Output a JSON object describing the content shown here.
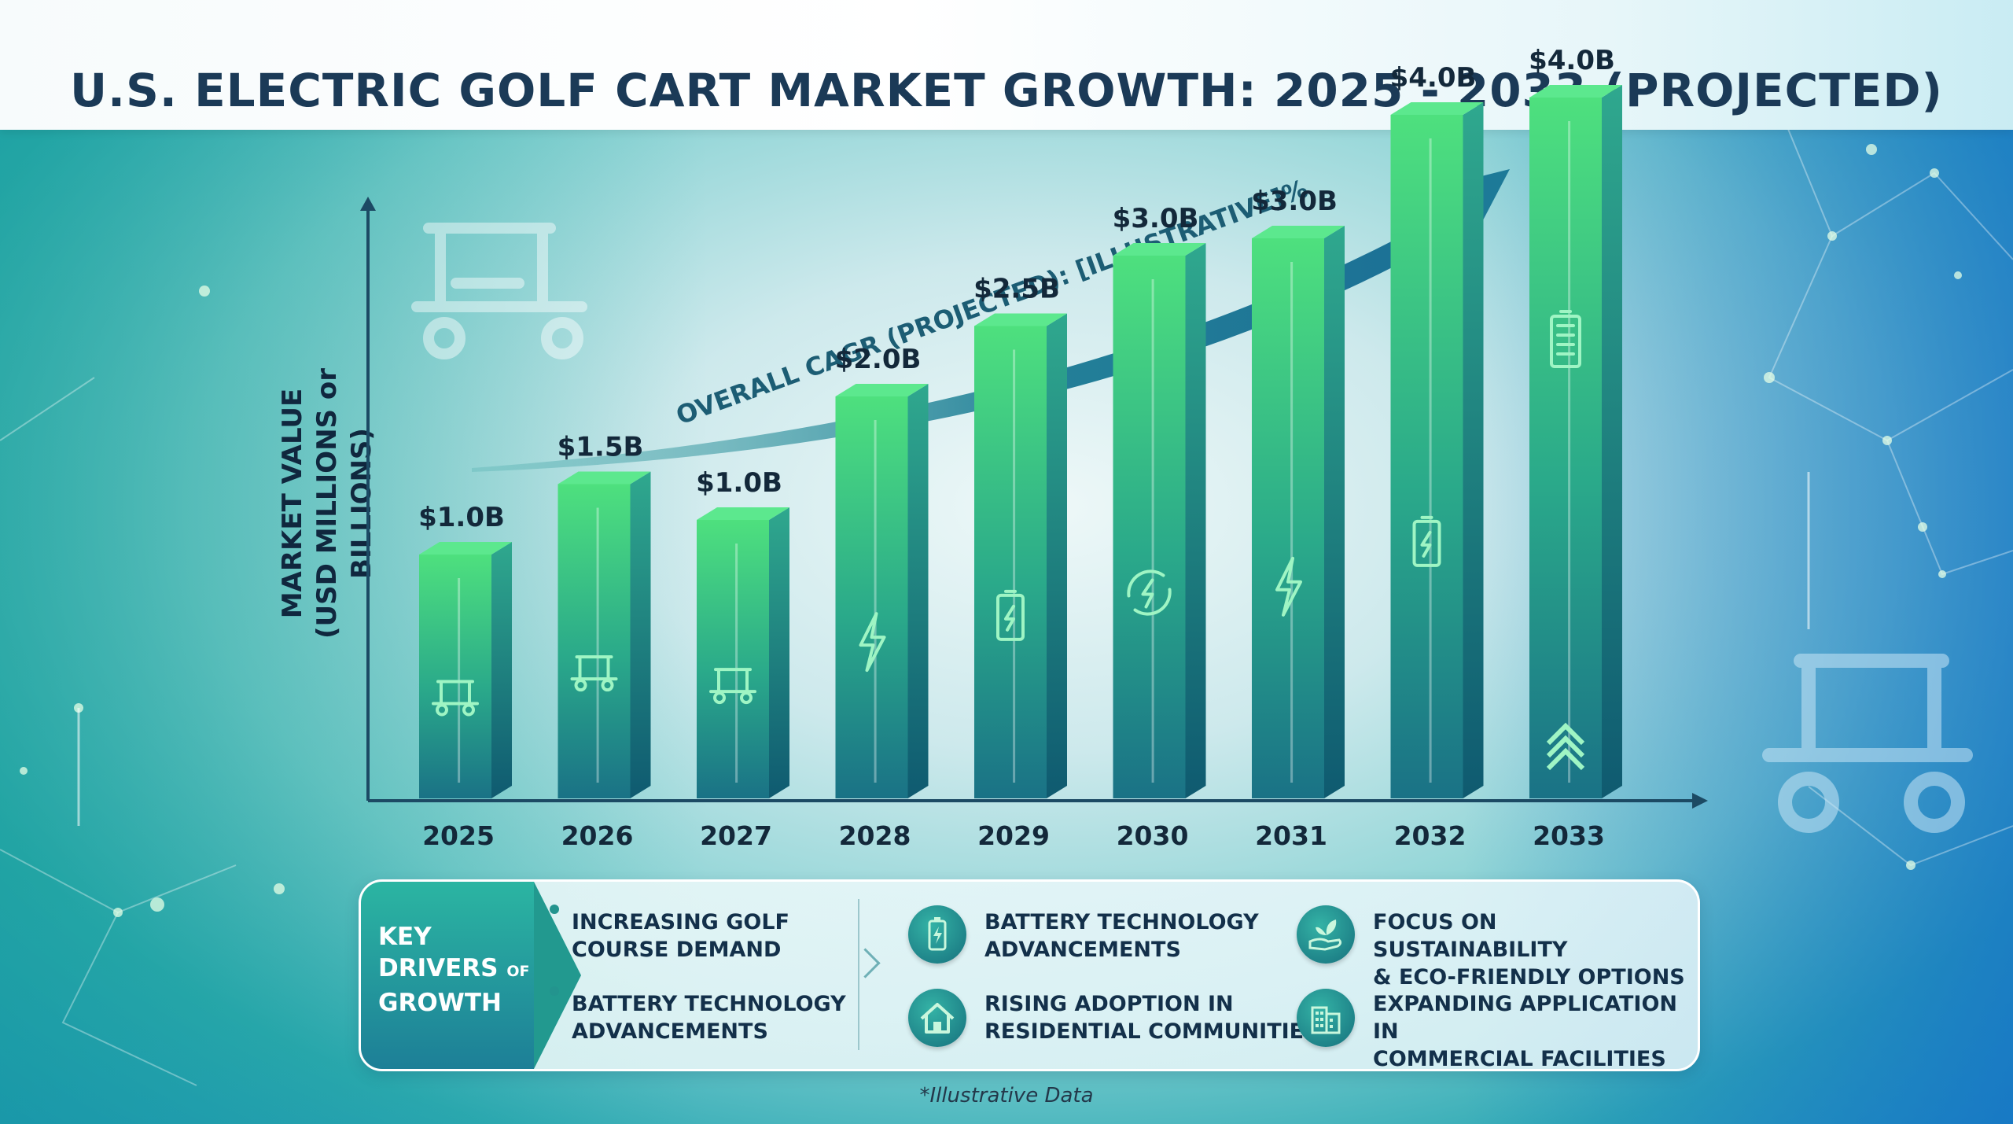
{
  "title": "U.S. ELECTRIC GOLF CART MARKET GROWTH: 2025 - 2033 (PROJECTED)",
  "y_axis_label": [
    "MARKET VALUE",
    "(USD MILLIONS or BILLIONS)"
  ],
  "cagr_label": "OVERALL CAGR (PROJECTED): [ILLUSTRATIVE]%",
  "chart_data": {
    "type": "bar",
    "title": "U.S. ELECTRIC GOLF CART MARKET GROWTH: 2025 - 2033 (PROJECTED)",
    "xlabel": "",
    "ylabel": "MARKET VALUE (USD MILLIONS or BILLIONS)",
    "categories": [
      "2025",
      "2026",
      "2027",
      "2028",
      "2029",
      "2030",
      "2031",
      "2032",
      "2033"
    ],
    "values": [
      1.0,
      1.5,
      1.0,
      2.0,
      2.5,
      3.0,
      3.0,
      4.0,
      4.0
    ],
    "data_labels": [
      "$1.0B",
      "$1.5B",
      "$1.0B",
      "$2.0B",
      "$2.5B",
      "$3.0B",
      "$3.0B",
      "$4.0B",
      "$4.0B"
    ],
    "bar_icons": [
      "golf-cart-icon",
      "golf-cart-icon",
      "golf-cart-icon",
      "lightning-icon",
      "battery-icon",
      "recharge-icon",
      "lightning-icon",
      "battery-icon",
      "full-battery-icon"
    ],
    "grid": false,
    "legend": "none",
    "colors": {
      "bar_top": "#4ee07e",
      "bar_bottom": "#1a7f86",
      "axis": "#1c4a64",
      "label": "#13283a"
    }
  },
  "drivers": {
    "heading": {
      "key": "KEY",
      "drivers": "DRIVERS",
      "of": "OF",
      "growth": "GROWTH"
    },
    "bullets": [
      {
        "line1": "INCREASING GOLF",
        "line2": "COURSE DEMAND"
      },
      {
        "line1": "BATTERY TECHNOLOGY",
        "line2": "ADVANCEMENTS"
      }
    ],
    "items": [
      {
        "icon": "battery-icon",
        "line1": "BATTERY TECHNOLOGY",
        "line2": "ADVANCEMENTS"
      },
      {
        "icon": "eco-hand-icon",
        "line1": "FOCUS ON SUSTAINABILITY",
        "line2": "& ECO-FRIENDLY OPTIONS"
      },
      {
        "icon": "house-icon",
        "line1": "RISING ADOPTION IN",
        "line2": "RESIDENTIAL COMMUNITIES"
      },
      {
        "icon": "building-icon",
        "line1": "EXPANDING APPLICATION IN",
        "line2": "COMMERCIAL FACILITIES"
      }
    ]
  },
  "footnote": "*Illustrative Data"
}
